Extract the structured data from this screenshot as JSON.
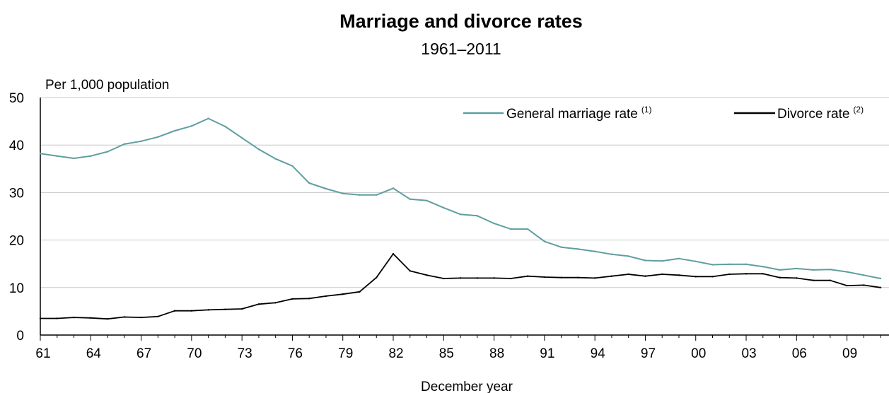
{
  "chart_data": {
    "type": "line",
    "title": "Marriage and divorce rates",
    "subtitle": "1961–2011",
    "ylabel": "Per 1,000 population",
    "xlabel": "December year",
    "ylim": [
      0,
      50
    ],
    "y_ticks": [
      "0",
      "10",
      "20",
      "30",
      "40",
      "50"
    ],
    "x_tick_labels": [
      "61",
      "64",
      "67",
      "70",
      "73",
      "76",
      "79",
      "82",
      "85",
      "88",
      "91",
      "94",
      "97",
      "00",
      "03",
      "06",
      "09"
    ],
    "grid": "horizontal",
    "legend_position": "top-right",
    "x": [
      1961,
      1962,
      1963,
      1964,
      1965,
      1966,
      1967,
      1968,
      1969,
      1970,
      1971,
      1972,
      1973,
      1974,
      1975,
      1976,
      1977,
      1978,
      1979,
      1980,
      1981,
      1982,
      1983,
      1984,
      1985,
      1986,
      1987,
      1988,
      1989,
      1990,
      1991,
      1992,
      1993,
      1994,
      1995,
      1996,
      1997,
      1998,
      1999,
      2000,
      2001,
      2002,
      2003,
      2004,
      2005,
      2006,
      2007,
      2008,
      2009,
      2010,
      2011
    ],
    "series": [
      {
        "name": "General marriage rate",
        "superscript": "(1)",
        "color": "#5f9ea0",
        "values": [
          38.2,
          37.7,
          37.2,
          37.7,
          38.6,
          40.2,
          40.8,
          41.7,
          43.0,
          44.0,
          45.6,
          43.9,
          41.5,
          39.1,
          37.1,
          35.6,
          32.0,
          30.8,
          29.8,
          29.5,
          29.5,
          30.9,
          28.6,
          28.3,
          26.8,
          25.4,
          25.1,
          23.5,
          22.3,
          22.3,
          19.7,
          18.5,
          18.1,
          17.6,
          17.0,
          16.6,
          15.7,
          15.6,
          16.1,
          15.5,
          14.8,
          14.9,
          14.9,
          14.4,
          13.7,
          14.0,
          13.7,
          13.8,
          13.3,
          12.6,
          11.9
        ]
      },
      {
        "name": "Divorce rate",
        "superscript": "(2)",
        "color": "#000000",
        "values": [
          3.5,
          3.5,
          3.7,
          3.6,
          3.4,
          3.8,
          3.7,
          3.9,
          5.1,
          5.1,
          5.3,
          5.4,
          5.5,
          6.5,
          6.8,
          7.6,
          7.7,
          8.2,
          8.6,
          9.1,
          12.1,
          17.1,
          13.5,
          12.6,
          11.9,
          12.0,
          12.0,
          12.0,
          11.9,
          12.4,
          12.2,
          12.1,
          12.1,
          12.0,
          12.4,
          12.8,
          12.4,
          12.8,
          12.6,
          12.3,
          12.3,
          12.8,
          12.9,
          12.9,
          12.1,
          12.0,
          11.5,
          11.5,
          10.4,
          10.5,
          10.0
        ]
      }
    ]
  }
}
